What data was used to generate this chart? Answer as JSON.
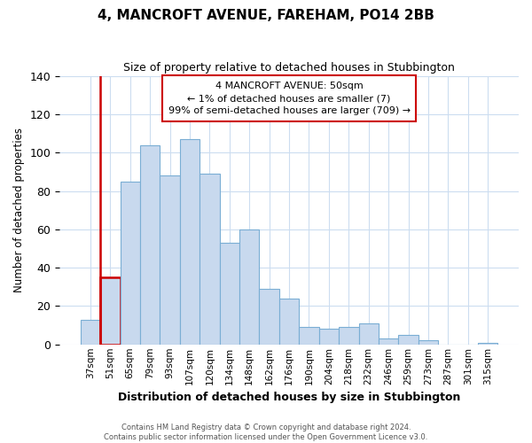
{
  "title": "4, MANCROFT AVENUE, FAREHAM, PO14 2BB",
  "subtitle": "Size of property relative to detached houses in Stubbington",
  "xlabel": "Distribution of detached houses by size in Stubbington",
  "ylabel": "Number of detached properties",
  "bar_labels": [
    "37sqm",
    "51sqm",
    "65sqm",
    "79sqm",
    "93sqm",
    "107sqm",
    "120sqm",
    "134sqm",
    "148sqm",
    "162sqm",
    "176sqm",
    "190sqm",
    "204sqm",
    "218sqm",
    "232sqm",
    "246sqm",
    "259sqm",
    "273sqm",
    "287sqm",
    "301sqm",
    "315sqm"
  ],
  "bar_values": [
    13,
    35,
    85,
    104,
    88,
    107,
    89,
    53,
    60,
    29,
    24,
    9,
    8,
    9,
    11,
    3,
    5,
    2,
    0,
    0,
    1
  ],
  "highlight_bar_index": 1,
  "bar_color": "#c8d9ee",
  "bar_edge_color": "#7aaed4",
  "highlight_color": "#cc0000",
  "annotation_title": "4 MANCROFT AVENUE: 50sqm",
  "annotation_line1": "← 1% of detached houses are smaller (7)",
  "annotation_line2": "99% of semi-detached houses are larger (709) →",
  "annotation_box_color": "#ffffff",
  "annotation_box_edge": "#cc0000",
  "ylim": [
    0,
    140
  ],
  "yticks": [
    0,
    20,
    40,
    60,
    80,
    100,
    120,
    140
  ],
  "footer_line1": "Contains HM Land Registry data © Crown copyright and database right 2024.",
  "footer_line2": "Contains public sector information licensed under the Open Government Licence v3.0.",
  "bg_color": "#ffffff",
  "grid_color": "#ccddf0"
}
